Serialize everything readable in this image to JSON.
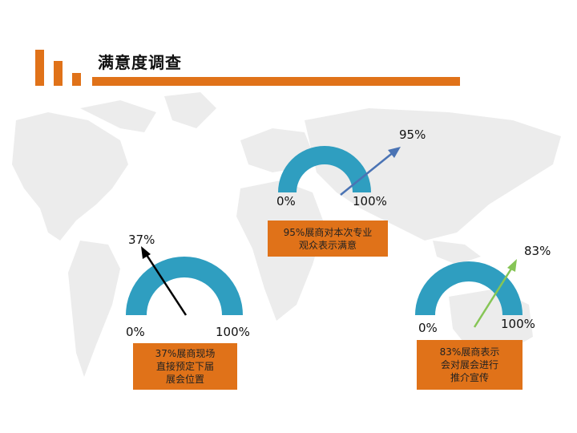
{
  "header": {
    "title": "满意度调查"
  },
  "colors": {
    "accent": "#e07219",
    "gauge": "#2f9ec0",
    "arrow1": "#4a73b4",
    "arrow2": "#000000",
    "arrow3": "#86c556"
  },
  "gauges": [
    {
      "min_label": "0%",
      "max_label": "100%",
      "value_label": "95%",
      "value": 95,
      "caption_lines": [
        "95%展商对本次专业",
        "观众表示满意"
      ]
    },
    {
      "min_label": "0%",
      "max_label": "100%",
      "value_label": "37%",
      "value": 37,
      "caption_lines": [
        "37%展商现场",
        "直接预定下届",
        "展会位置"
      ]
    },
    {
      "min_label": "0%",
      "max_label": "100%",
      "value_label": "83%",
      "value": 83,
      "caption_lines": [
        "83%展商表示",
        "会对展会进行",
        "推介宣传"
      ]
    }
  ]
}
